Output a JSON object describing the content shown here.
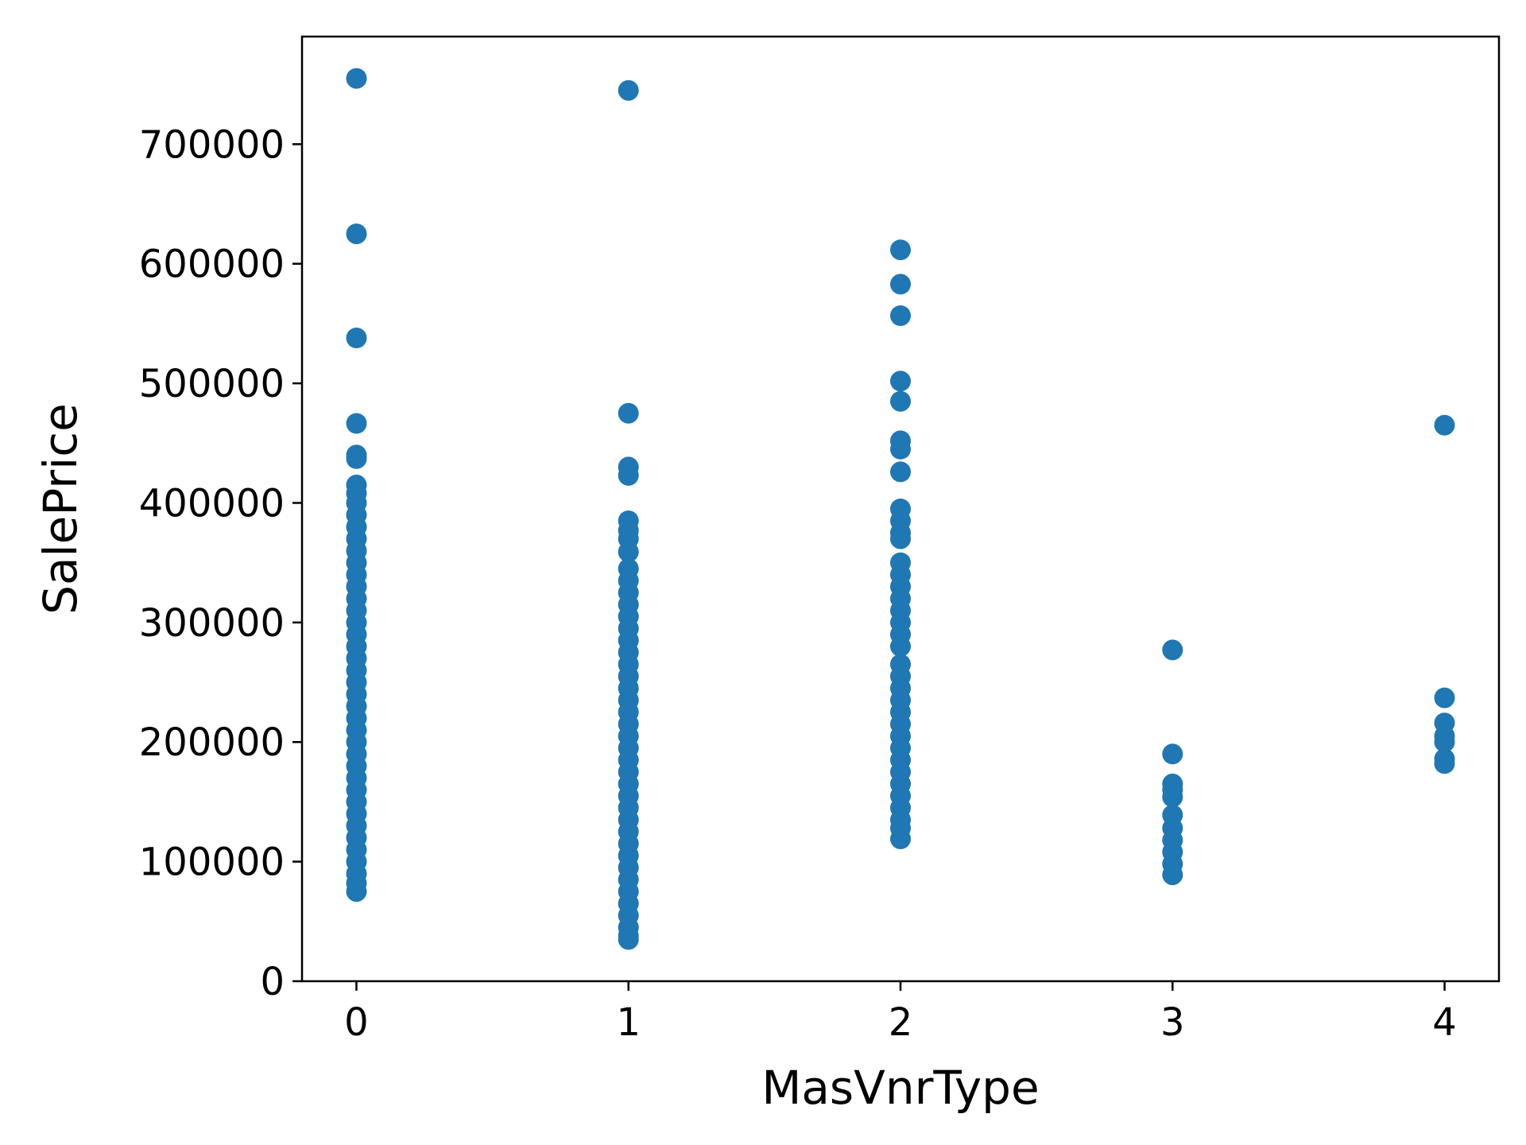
{
  "chart_data": {
    "type": "scatter",
    "title": "",
    "xlabel": "MasVnrType",
    "ylabel": "SalePrice",
    "xlim": [
      -0.2,
      4.2
    ],
    "ylim": [
      0,
      790000
    ],
    "xticks": [
      0,
      1,
      2,
      3,
      4
    ],
    "yticks": [
      0,
      100000,
      200000,
      300000,
      400000,
      500000,
      600000,
      700000
    ],
    "grid": false,
    "legend": "none",
    "marker_color": "#1f77b4",
    "series": [
      {
        "points": [
          {
            "x": 0,
            "y": 755000
          },
          {
            "x": 0,
            "y": 625000
          },
          {
            "x": 0,
            "y": 538000
          },
          {
            "x": 0,
            "y": 466500
          },
          {
            "x": 0,
            "y": 440000
          },
          {
            "x": 0,
            "y": 437000
          },
          {
            "x": 0,
            "y": 415000
          },
          {
            "x": 0,
            "y": 408000
          },
          {
            "x": 0,
            "y": 400000
          },
          {
            "x": 0,
            "y": 390000
          },
          {
            "x": 0,
            "y": 380000
          },
          {
            "x": 0,
            "y": 370000
          },
          {
            "x": 0,
            "y": 360000
          },
          {
            "x": 0,
            "y": 350000
          },
          {
            "x": 0,
            "y": 340000
          },
          {
            "x": 0,
            "y": 330000
          },
          {
            "x": 0,
            "y": 320000
          },
          {
            "x": 0,
            "y": 310000
          },
          {
            "x": 0,
            "y": 300000
          },
          {
            "x": 0,
            "y": 290000
          },
          {
            "x": 0,
            "y": 280000
          },
          {
            "x": 0,
            "y": 270000
          },
          {
            "x": 0,
            "y": 260000
          },
          {
            "x": 0,
            "y": 250000
          },
          {
            "x": 0,
            "y": 240000
          },
          {
            "x": 0,
            "y": 230000
          },
          {
            "x": 0,
            "y": 220000
          },
          {
            "x": 0,
            "y": 210000
          },
          {
            "x": 0,
            "y": 200000
          },
          {
            "x": 0,
            "y": 190000
          },
          {
            "x": 0,
            "y": 180000
          },
          {
            "x": 0,
            "y": 170000
          },
          {
            "x": 0,
            "y": 160000
          },
          {
            "x": 0,
            "y": 150000
          },
          {
            "x": 0,
            "y": 140000
          },
          {
            "x": 0,
            "y": 130000
          },
          {
            "x": 0,
            "y": 120000
          },
          {
            "x": 0,
            "y": 110000
          },
          {
            "x": 0,
            "y": 100000
          },
          {
            "x": 0,
            "y": 90000
          },
          {
            "x": 0,
            "y": 82000
          },
          {
            "x": 0,
            "y": 75000
          },
          {
            "x": 1,
            "y": 745000
          },
          {
            "x": 1,
            "y": 475000
          },
          {
            "x": 1,
            "y": 430000
          },
          {
            "x": 1,
            "y": 423000
          },
          {
            "x": 1,
            "y": 385000
          },
          {
            "x": 1,
            "y": 377000
          },
          {
            "x": 1,
            "y": 370000
          },
          {
            "x": 1,
            "y": 359000
          },
          {
            "x": 1,
            "y": 345000
          },
          {
            "x": 1,
            "y": 335000
          },
          {
            "x": 1,
            "y": 325000
          },
          {
            "x": 1,
            "y": 315000
          },
          {
            "x": 1,
            "y": 305000
          },
          {
            "x": 1,
            "y": 295000
          },
          {
            "x": 1,
            "y": 285000
          },
          {
            "x": 1,
            "y": 275000
          },
          {
            "x": 1,
            "y": 265000
          },
          {
            "x": 1,
            "y": 255000
          },
          {
            "x": 1,
            "y": 245000
          },
          {
            "x": 1,
            "y": 235000
          },
          {
            "x": 1,
            "y": 225000
          },
          {
            "x": 1,
            "y": 215000
          },
          {
            "x": 1,
            "y": 205000
          },
          {
            "x": 1,
            "y": 195000
          },
          {
            "x": 1,
            "y": 185000
          },
          {
            "x": 1,
            "y": 175000
          },
          {
            "x": 1,
            "y": 165000
          },
          {
            "x": 1,
            "y": 155000
          },
          {
            "x": 1,
            "y": 145000
          },
          {
            "x": 1,
            "y": 135000
          },
          {
            "x": 1,
            "y": 125000
          },
          {
            "x": 1,
            "y": 115000
          },
          {
            "x": 1,
            "y": 105000
          },
          {
            "x": 1,
            "y": 95000
          },
          {
            "x": 1,
            "y": 85000
          },
          {
            "x": 1,
            "y": 75000
          },
          {
            "x": 1,
            "y": 65000
          },
          {
            "x": 1,
            "y": 55000
          },
          {
            "x": 1,
            "y": 45000
          },
          {
            "x": 1,
            "y": 37900
          },
          {
            "x": 1,
            "y": 34900
          },
          {
            "x": 2,
            "y": 611657
          },
          {
            "x": 2,
            "y": 582933
          },
          {
            "x": 2,
            "y": 556581
          },
          {
            "x": 2,
            "y": 501837
          },
          {
            "x": 2,
            "y": 485000
          },
          {
            "x": 2,
            "y": 451950
          },
          {
            "x": 2,
            "y": 445000
          },
          {
            "x": 2,
            "y": 426000
          },
          {
            "x": 2,
            "y": 395000
          },
          {
            "x": 2,
            "y": 385000
          },
          {
            "x": 2,
            "y": 375000
          },
          {
            "x": 2,
            "y": 370000
          },
          {
            "x": 2,
            "y": 350000
          },
          {
            "x": 2,
            "y": 340000
          },
          {
            "x": 2,
            "y": 330000
          },
          {
            "x": 2,
            "y": 320000
          },
          {
            "x": 2,
            "y": 310000
          },
          {
            "x": 2,
            "y": 300000
          },
          {
            "x": 2,
            "y": 290000
          },
          {
            "x": 2,
            "y": 280000
          },
          {
            "x": 2,
            "y": 265000
          },
          {
            "x": 2,
            "y": 255000
          },
          {
            "x": 2,
            "y": 245000
          },
          {
            "x": 2,
            "y": 235000
          },
          {
            "x": 2,
            "y": 225000
          },
          {
            "x": 2,
            "y": 215000
          },
          {
            "x": 2,
            "y": 205000
          },
          {
            "x": 2,
            "y": 195000
          },
          {
            "x": 2,
            "y": 185000
          },
          {
            "x": 2,
            "y": 175000
          },
          {
            "x": 2,
            "y": 165000
          },
          {
            "x": 2,
            "y": 155000
          },
          {
            "x": 2,
            "y": 145000
          },
          {
            "x": 2,
            "y": 135000
          },
          {
            "x": 2,
            "y": 128000
          },
          {
            "x": 2,
            "y": 119000
          },
          {
            "x": 3,
            "y": 277000
          },
          {
            "x": 3,
            "y": 190000
          },
          {
            "x": 3,
            "y": 165000
          },
          {
            "x": 3,
            "y": 160000
          },
          {
            "x": 3,
            "y": 154000
          },
          {
            "x": 3,
            "y": 139000
          },
          {
            "x": 3,
            "y": 128000
          },
          {
            "x": 3,
            "y": 118000
          },
          {
            "x": 3,
            "y": 108000
          },
          {
            "x": 3,
            "y": 98000
          },
          {
            "x": 3,
            "y": 89000
          },
          {
            "x": 4,
            "y": 465000
          },
          {
            "x": 4,
            "y": 237000
          },
          {
            "x": 4,
            "y": 216000
          },
          {
            "x": 4,
            "y": 205000
          },
          {
            "x": 4,
            "y": 200000
          },
          {
            "x": 4,
            "y": 186000
          },
          {
            "x": 4,
            "y": 182000
          }
        ]
      }
    ]
  }
}
